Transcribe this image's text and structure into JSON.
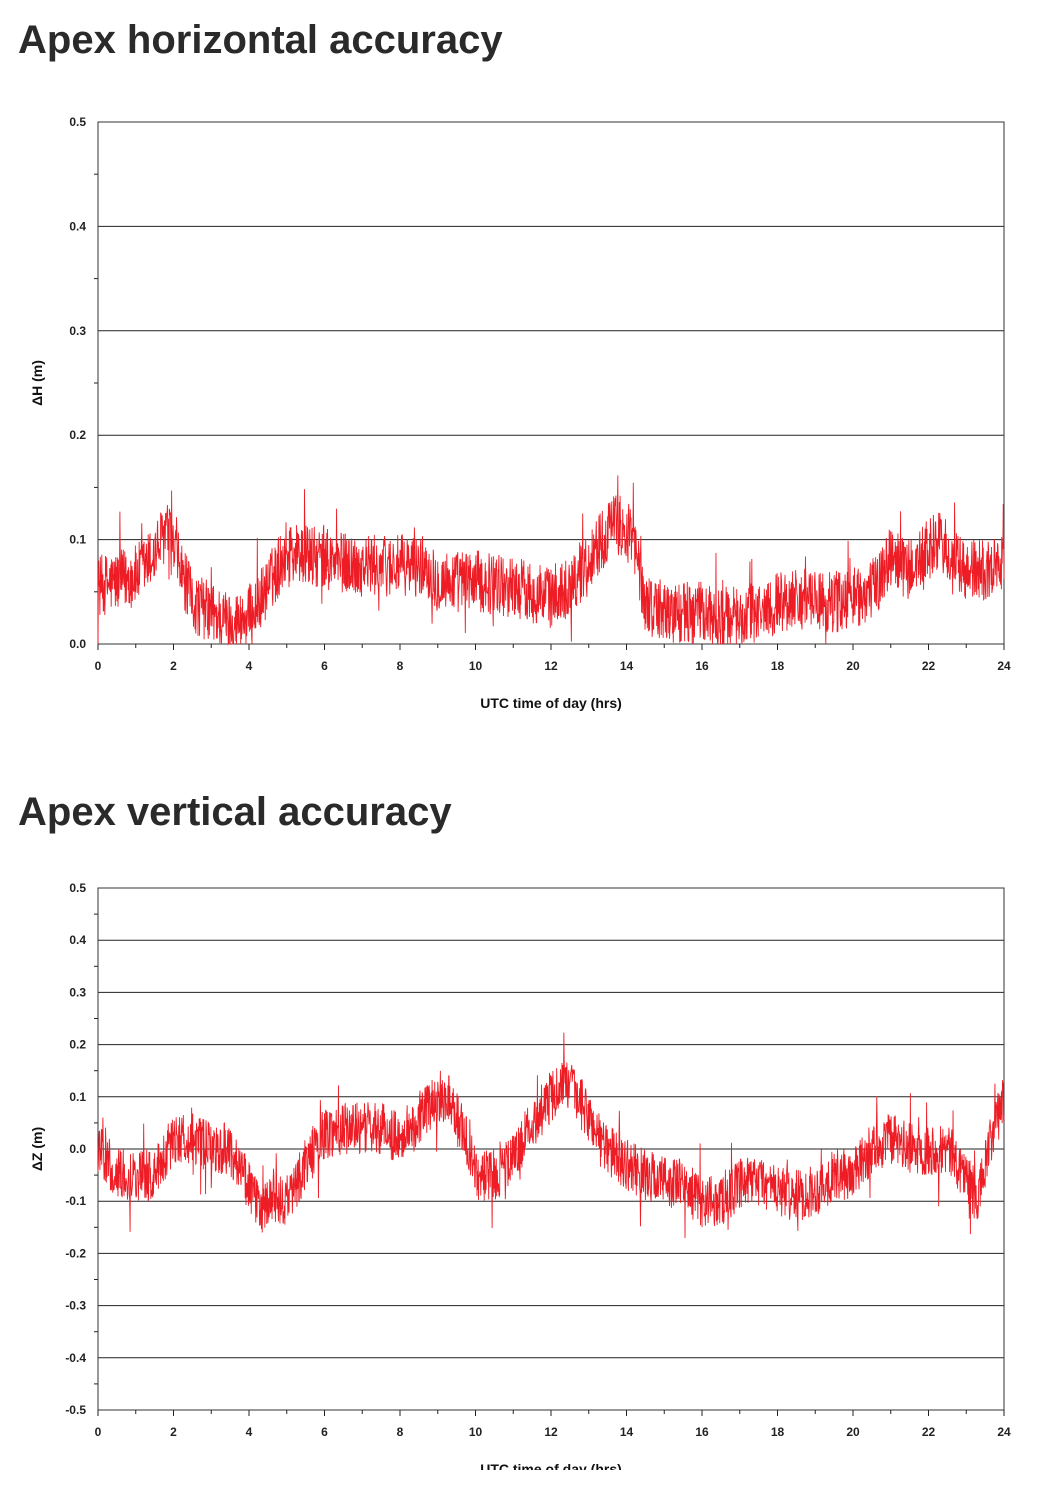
{
  "titles": {
    "horizontal": "Apex horizontal accuracy",
    "vertical": "Apex vertical accuracy"
  },
  "colors": {
    "series": "#ee1c25",
    "grid": "#222222"
  },
  "chart_data": [
    {
      "type": "line",
      "title": "Apex horizontal accuracy",
      "xlabel": "UTC time of day (hrs)",
      "ylabel": "ΔH (m)",
      "xlim": [
        0,
        24
      ],
      "ylim": [
        0.0,
        0.5
      ],
      "xticks": [
        "0",
        "2",
        "4",
        "6",
        "8",
        "10",
        "12",
        "14",
        "16",
        "18",
        "20",
        "22",
        "24"
      ],
      "yticks": [
        "0.0",
        "0.1",
        "0.2",
        "0.3",
        "0.4",
        "0.5"
      ],
      "grid": "horizontal",
      "series": [
        {
          "x": [
            0,
            0.5,
            1,
            1.5,
            1.8,
            2,
            2.5,
            3,
            3.5,
            4,
            4.5,
            5,
            5.5,
            6,
            7,
            8,
            8.7,
            9,
            10,
            11,
            11.5,
            12,
            12.5,
            13,
            13.5,
            13.8,
            14.2,
            14.5,
            15,
            15.5,
            16,
            16.5,
            17,
            17.5,
            18,
            18.5,
            19,
            19.5,
            20,
            20.5,
            21,
            21.5,
            22,
            22.3,
            22.6,
            23,
            23.5,
            24
          ],
          "y": [
            0.055,
            0.06,
            0.065,
            0.085,
            0.11,
            0.09,
            0.04,
            0.03,
            0.02,
            0.025,
            0.055,
            0.09,
            0.085,
            0.08,
            0.075,
            0.075,
            0.075,
            0.06,
            0.06,
            0.055,
            0.05,
            0.045,
            0.055,
            0.08,
            0.11,
            0.115,
            0.095,
            0.04,
            0.03,
            0.03,
            0.03,
            0.025,
            0.025,
            0.03,
            0.04,
            0.045,
            0.04,
            0.04,
            0.045,
            0.05,
            0.085,
            0.07,
            0.09,
            0.1,
            0.08,
            0.07,
            0.07,
            0.08
          ]
        }
      ]
    },
    {
      "type": "line",
      "title": "Apex vertical accuracy",
      "xlabel": "UTC time of day (hrs)",
      "ylabel": "ΔZ (m)",
      "xlim": [
        0,
        24
      ],
      "ylim": [
        -0.5,
        0.5
      ],
      "xticks": [
        "0",
        "2",
        "4",
        "6",
        "8",
        "10",
        "12",
        "14",
        "16",
        "18",
        "20",
        "22",
        "24"
      ],
      "yticks": [
        "-0.5",
        "-0.4",
        "-0.3",
        "-0.2",
        "-0.1",
        "0.0",
        "0.1",
        "0.2",
        "0.3",
        "0.4",
        "0.5"
      ],
      "grid": "horizontal",
      "series": [
        {
          "x": [
            0,
            0.5,
            1,
            1.5,
            2,
            2.5,
            3,
            3.5,
            4,
            4.3,
            4.6,
            5,
            5.5,
            6,
            6.5,
            7,
            7.5,
            8,
            8.5,
            9,
            9.3,
            9.7,
            10,
            10.5,
            11,
            11.5,
            12,
            12.3,
            12.7,
            13,
            13.5,
            14,
            14.5,
            15,
            15.5,
            16,
            16.5,
            17,
            17.5,
            18,
            18.5,
            19,
            19.5,
            20,
            20.5,
            21,
            21.5,
            22,
            22.5,
            23,
            23.3,
            23.6,
            24
          ],
          "y": [
            0.0,
            -0.05,
            -0.05,
            -0.05,
            0.02,
            0.02,
            0.0,
            0.0,
            -0.07,
            -0.12,
            -0.1,
            -0.1,
            -0.03,
            0.03,
            0.04,
            0.04,
            0.04,
            0.02,
            0.06,
            0.1,
            0.1,
            0.03,
            -0.05,
            -0.05,
            -0.02,
            0.05,
            0.1,
            0.13,
            0.1,
            0.06,
            0.0,
            -0.03,
            -0.05,
            -0.06,
            -0.07,
            -0.1,
            -0.1,
            -0.07,
            -0.06,
            -0.08,
            -0.09,
            -0.08,
            -0.05,
            -0.05,
            0.0,
            0.02,
            0.0,
            0.0,
            0.0,
            -0.05,
            -0.1,
            0.0,
            0.1
          ]
        }
      ]
    }
  ]
}
